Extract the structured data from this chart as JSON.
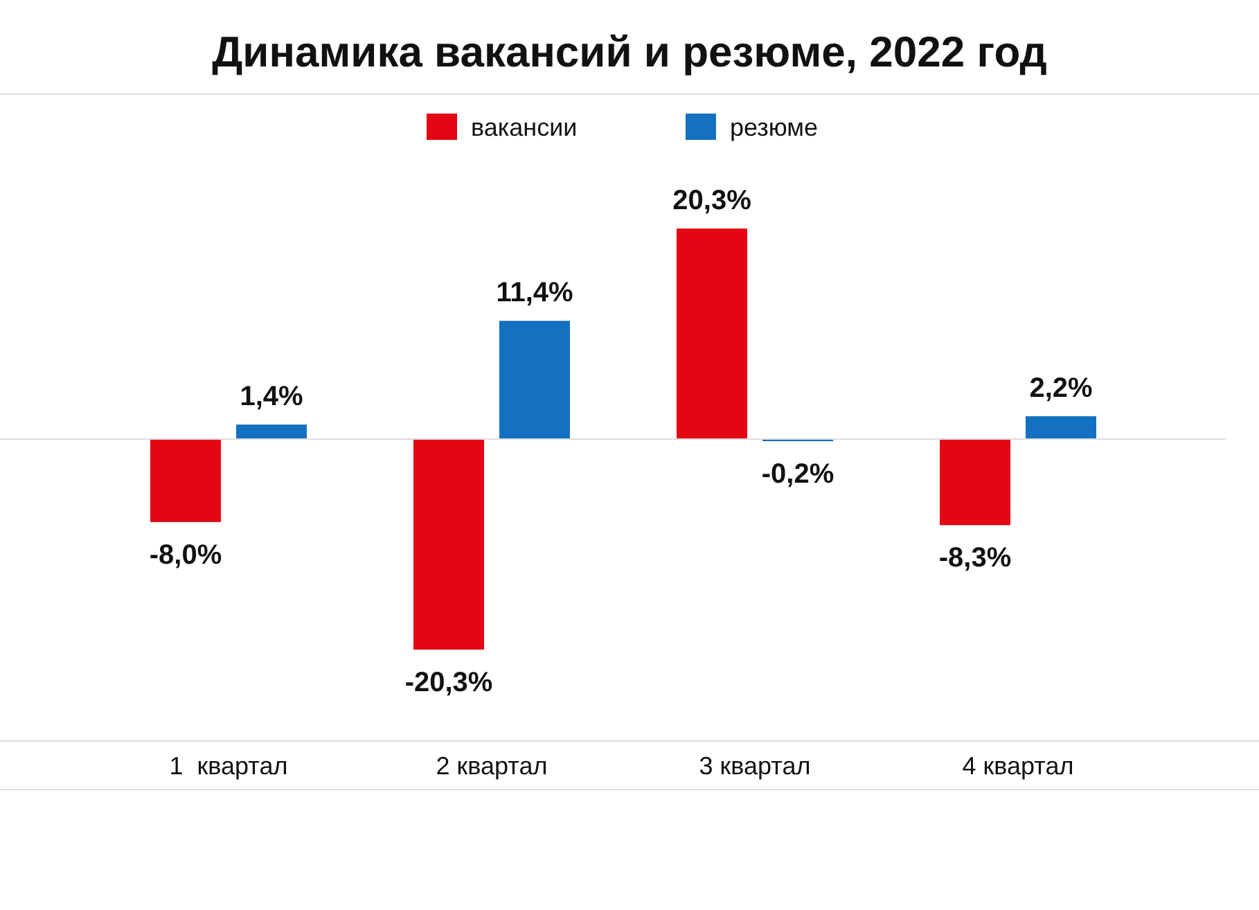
{
  "chart_data": {
    "type": "bar",
    "title": "Динамика вакансий и резюме, 2022 год",
    "categories": [
      "1  квартал",
      "2 квартал",
      "3 квартал",
      "4 квартал"
    ],
    "series": [
      {
        "name": "вакансии",
        "color": "#e30613",
        "values": [
          -8.0,
          -20.3,
          20.3,
          -8.3
        ],
        "value_labels": [
          "-8,0%",
          "-20,3%",
          "20,3%",
          "-8,3%"
        ]
      },
      {
        "name": "резюме",
        "color": "#1470c0",
        "values": [
          1.4,
          11.4,
          -0.2,
          2.2
        ],
        "value_labels": [
          "1,4%",
          "11,4%",
          "-0,2%",
          "2,2%"
        ]
      }
    ],
    "relative": false,
    "legend": "top",
    "grid": false
  }
}
